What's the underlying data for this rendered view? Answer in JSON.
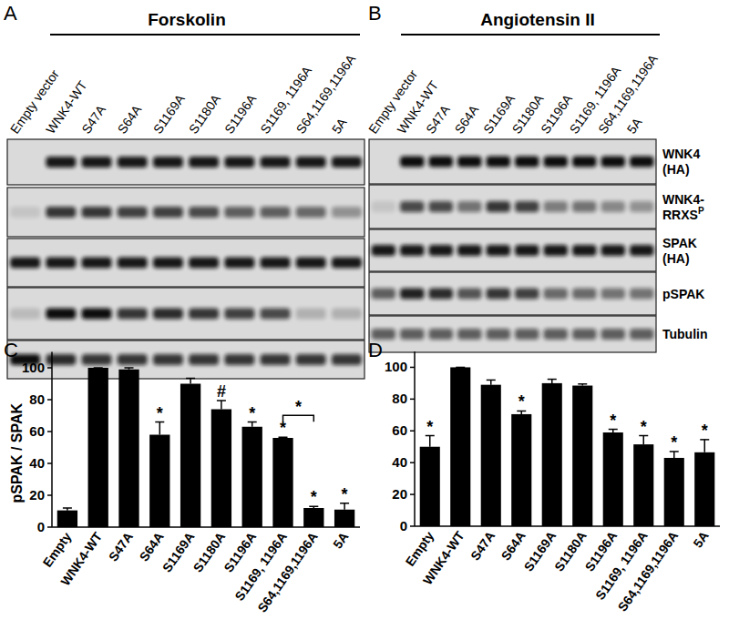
{
  "chart_data": [
    {
      "type": "bar",
      "panel_label": "C",
      "y_label": "pSPAK / SPAK",
      "categories": [
        "Empty",
        "WNK4-WT",
        "S47A",
        "S64A",
        "S1169A",
        "S1180A",
        "S1196A",
        "S1169, 1196A",
        "S64,1169,1196A",
        "5A"
      ],
      "values": [
        10.5,
        100,
        99,
        58,
        90,
        74,
        63,
        56,
        12,
        11
      ],
      "errors": [
        1.5,
        0,
        1,
        8,
        3.5,
        5.5,
        3,
        0.5,
        1,
        4
      ],
      "significance": [
        null,
        null,
        null,
        "*",
        null,
        "#",
        "*",
        "*",
        "*",
        "*"
      ],
      "brackets": [
        {
          "between": [
            "S1169, 1196A",
            "S64,1169,1196A"
          ],
          "text": "*"
        }
      ],
      "color": "#000000",
      "ylim": [
        0,
        110
      ],
      "yticks": [
        0,
        20,
        40,
        60,
        80,
        100
      ]
    },
    {
      "type": "bar",
      "panel_label": "D",
      "categories": [
        "Empty",
        "WNK4-WT",
        "S47A",
        "S64A",
        "S1169A",
        "S1180A",
        "S1196A",
        "S1169, 1196A",
        "S64,1169,1196A",
        "5A"
      ],
      "values": [
        50,
        100,
        89,
        70.5,
        90,
        88.5,
        59,
        51.5,
        43,
        46.5
      ],
      "errors": [
        7,
        0,
        3,
        2,
        2.5,
        1,
        2,
        5.5,
        4,
        8
      ],
      "significance": [
        "*",
        null,
        null,
        "*",
        null,
        null,
        "*",
        "*",
        "*",
        "*"
      ],
      "color": "#000000",
      "ylim": [
        0,
        110
      ],
      "yticks": [
        0,
        20,
        40,
        60,
        80,
        100
      ]
    }
  ],
  "blots": [
    {
      "panel_label": "A",
      "title": "Forskolin",
      "lanes": [
        "Empty vector",
        "WNK4-WT",
        "S47A",
        "S64A",
        "S1169A",
        "S1180A",
        "S1196A",
        "S1169, 1196A",
        "S64,1169,1196A",
        "5A"
      ],
      "rows": [
        {
          "intensity": [
            0,
            0.95,
            0.95,
            0.95,
            0.95,
            0.95,
            0.95,
            0.95,
            0.95,
            0.95
          ]
        },
        {
          "intensity": [
            0.1,
            0.8,
            0.8,
            0.75,
            0.75,
            0.7,
            0.6,
            0.6,
            0.55,
            0.35
          ]
        },
        {
          "intensity": [
            0.95,
            0.95,
            0.95,
            0.95,
            0.95,
            0.95,
            0.95,
            0.95,
            0.95,
            0.95
          ]
        },
        {
          "intensity": [
            0.15,
            1,
            1,
            0.8,
            0.85,
            0.8,
            0.75,
            0.7,
            0.2,
            0.2
          ]
        },
        {
          "intensity": [
            1,
            0.85,
            0.8,
            0.8,
            0.8,
            0.8,
            0.8,
            0.8,
            0.8,
            0.8
          ]
        }
      ]
    },
    {
      "panel_label": "B",
      "title": "Angiotensin II",
      "lanes": [
        "Empty vector",
        "WNK4-WT",
        "S47A",
        "S64A",
        "S1169A",
        "S1180A",
        "S1196A",
        "S1169, 1196A",
        "S64,1169,1196A",
        "5A"
      ],
      "rows": [
        {
          "intensity": [
            0,
            1,
            1,
            1,
            1,
            1,
            1,
            1,
            1,
            1
          ]
        },
        {
          "intensity": [
            0.1,
            0.7,
            0.7,
            0.5,
            0.8,
            0.75,
            0.45,
            0.5,
            0.4,
            0.35
          ]
        },
        {
          "intensity": [
            0.95,
            0.95,
            0.95,
            0.95,
            0.95,
            0.95,
            0.95,
            0.95,
            0.95,
            0.95
          ]
        },
        {
          "intensity": [
            0.6,
            0.9,
            0.85,
            0.65,
            0.8,
            0.75,
            0.55,
            0.55,
            0.5,
            0.5
          ]
        },
        {
          "intensity": [
            0.6,
            0.6,
            0.6,
            0.6,
            0.6,
            0.6,
            0.6,
            0.6,
            0.6,
            0.6
          ]
        }
      ]
    }
  ],
  "row_labels": [
    {
      "lines": [
        "WNK4",
        "(HA)"
      ]
    },
    {
      "lines": [
        "WNK4-",
        "RRXS"
      ],
      "sup": "P"
    },
    {
      "lines": [
        "SPAK",
        "(HA)"
      ]
    },
    {
      "lines": [
        "pSPAK"
      ]
    },
    {
      "lines": [
        "Tubulin"
      ]
    }
  ]
}
